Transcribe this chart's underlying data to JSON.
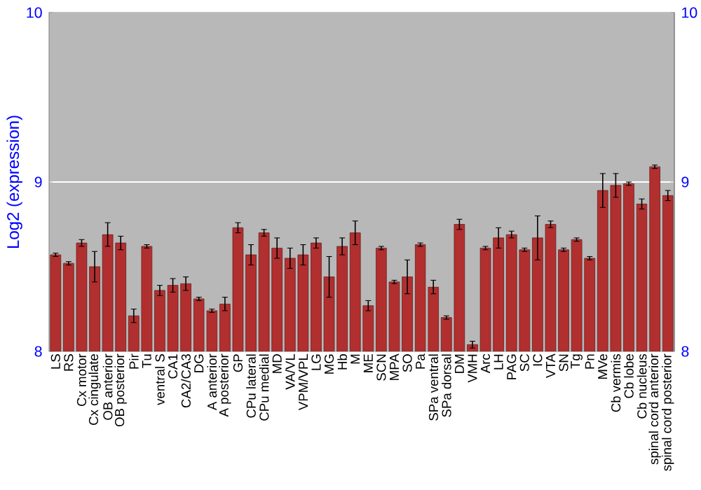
{
  "chart_data": {
    "type": "bar",
    "ylabel": "Log2 (expression)",
    "categories": [
      "LS",
      "RS",
      "Cx motor",
      "Cx cingulate",
      "OB anterior",
      "OB posterior",
      "Pir",
      "Tu",
      "ventral S",
      "CA1",
      "CA2/CA3",
      "DG",
      "A anterior",
      "A posterior",
      "GP",
      "CPu lateral",
      "CPu medial",
      "MD",
      "VA/VL",
      "VPM/VPL",
      "LG",
      "MG",
      "Hb",
      "M",
      "ME",
      "SCN",
      "MPA",
      "SO",
      "Pa",
      "SPa ventral",
      "SPa dorsal",
      "DM",
      "VMH",
      "Arc",
      "LH",
      "PAG",
      "SC",
      "IC",
      "VTA",
      "SN",
      "Tg",
      "Pn",
      "MVe",
      "Cb vermis",
      "Cb lobe",
      "Cb nucleus",
      "spinal cord anterior",
      "spinal cord posterior"
    ],
    "values": [
      8.57,
      8.52,
      8.64,
      8.5,
      8.69,
      8.64,
      8.21,
      8.62,
      8.36,
      8.39,
      8.4,
      8.31,
      8.24,
      8.28,
      8.73,
      8.57,
      8.7,
      8.61,
      8.55,
      8.57,
      8.64,
      8.44,
      8.62,
      8.7,
      8.27,
      8.61,
      8.41,
      8.44,
      8.63,
      8.38,
      8.2,
      8.75,
      8.04,
      8.61,
      8.67,
      8.69,
      8.6,
      8.67,
      8.75,
      8.6,
      8.66,
      8.55,
      8.95,
      8.98,
      8.99,
      8.87,
      9.09,
      8.92
    ],
    "errors": [
      0.01,
      0.01,
      0.02,
      0.09,
      0.07,
      0.04,
      0.04,
      0.01,
      0.03,
      0.04,
      0.04,
      0.01,
      0.01,
      0.04,
      0.03,
      0.06,
      0.02,
      0.06,
      0.06,
      0.06,
      0.03,
      0.12,
      0.05,
      0.07,
      0.03,
      0.01,
      0.01,
      0.1,
      0.01,
      0.04,
      0.01,
      0.03,
      0.02,
      0.01,
      0.06,
      0.02,
      0.01,
      0.13,
      0.02,
      0.01,
      0.01,
      0.01,
      0.1,
      0.07,
      0.01,
      0.03,
      0.01,
      0.03
    ],
    "color": "#b22f2f",
    "ylim": [
      8,
      10
    ],
    "yticks": [
      8,
      9,
      10
    ],
    "y2lim": [
      8,
      10
    ],
    "y2ticks": [
      8,
      9,
      10
    ],
    "grid": "y"
  }
}
